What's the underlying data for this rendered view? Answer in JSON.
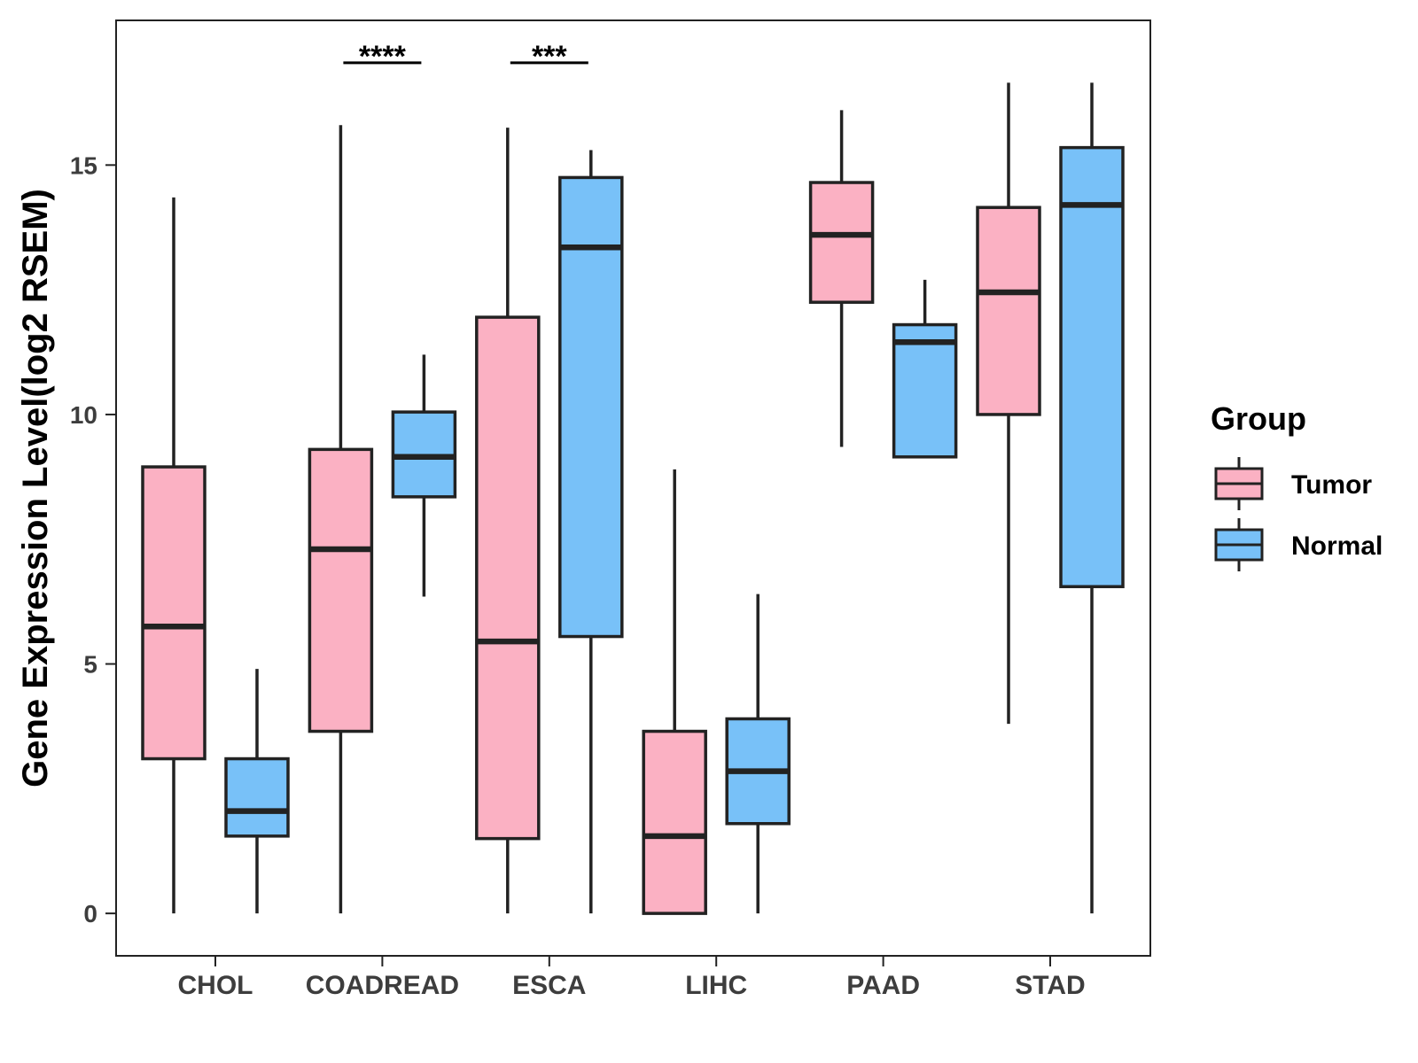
{
  "chart_data": {
    "type": "boxplot",
    "title": "",
    "xlabel": "",
    "ylabel": "Gene Expression Level(log2 RSEM)",
    "ylim": [
      -0.85,
      17.9
    ],
    "yticks": [
      0,
      5,
      10,
      15
    ],
    "categories": [
      "CHOL",
      "COADREAD",
      "ESCA",
      "LIHC",
      "PAAD",
      "STAD"
    ],
    "legend": {
      "title": "Group",
      "position": "right"
    },
    "series": [
      {
        "name": "Tumor",
        "color": "#fbb1c3",
        "boxes": [
          {
            "min": 0,
            "q1": 3.1,
            "median": 5.75,
            "q3": 8.95,
            "max": 14.35
          },
          {
            "min": 0,
            "q1": 3.65,
            "median": 7.3,
            "q3": 9.3,
            "max": 15.8
          },
          {
            "min": 0,
            "q1": 1.5,
            "median": 5.45,
            "q3": 11.95,
            "max": 15.75
          },
          {
            "min": 0,
            "q1": 0,
            "median": 1.55,
            "q3": 3.65,
            "max": 8.9
          },
          {
            "min": 9.35,
            "q1": 12.25,
            "median": 13.6,
            "q3": 14.65,
            "max": 16.1
          },
          {
            "min": 3.8,
            "q1": 10.0,
            "median": 12.45,
            "q3": 14.15,
            "max": 16.65
          }
        ]
      },
      {
        "name": "Normal",
        "color": "#78c1f8",
        "boxes": [
          {
            "min": 0,
            "q1": 1.55,
            "median": 2.05,
            "q3": 3.1,
            "max": 4.9
          },
          {
            "min": 6.35,
            "q1": 8.35,
            "median": 9.15,
            "q3": 10.05,
            "max": 11.2
          },
          {
            "min": 0,
            "q1": 5.55,
            "median": 13.35,
            "q3": 14.75,
            "max": 15.3
          },
          {
            "min": 0,
            "q1": 1.8,
            "median": 2.85,
            "q3": 3.9,
            "max": 6.4
          },
          {
            "min": 9.15,
            "q1": 9.15,
            "median": 11.45,
            "q3": 11.8,
            "max": 12.7
          },
          {
            "min": 0,
            "q1": 6.55,
            "median": 14.2,
            "q3": 15.35,
            "max": 16.65
          }
        ]
      }
    ],
    "significance": [
      {
        "category": "COADREAD",
        "label": "****",
        "y": 17.05
      },
      {
        "category": "ESCA",
        "label": "***",
        "y": 17.05
      }
    ]
  }
}
